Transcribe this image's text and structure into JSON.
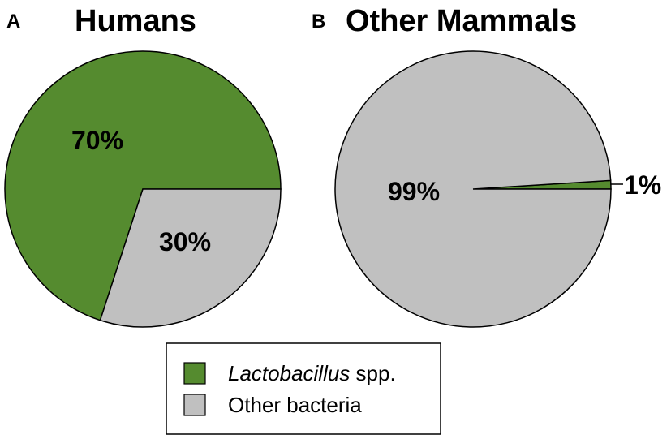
{
  "colors": {
    "lactobacillus": "#558B2F",
    "other": "#C0C0C0",
    "stroke": "#000000"
  },
  "legend": {
    "items": [
      {
        "label_italic": "Lactobacillus",
        "label_rest": " spp.",
        "color": "#558B2F"
      },
      {
        "label_italic": "",
        "label_rest": "Other bacteria",
        "color": "#C0C0C0"
      }
    ]
  },
  "chart_data": [
    {
      "type": "pie",
      "panel": "A",
      "title": "Humans",
      "slices": [
        {
          "name": "Lactobacillus spp.",
          "value": 70,
          "label": "70%"
        },
        {
          "name": "Other bacteria",
          "value": 30,
          "label": "30%"
        }
      ]
    },
    {
      "type": "pie",
      "panel": "B",
      "title": "Other Mammals",
      "slices": [
        {
          "name": "Lactobacillus spp.",
          "value": 1,
          "label": "1%"
        },
        {
          "name": "Other bacteria",
          "value": 99,
          "label": "99%"
        }
      ]
    }
  ]
}
